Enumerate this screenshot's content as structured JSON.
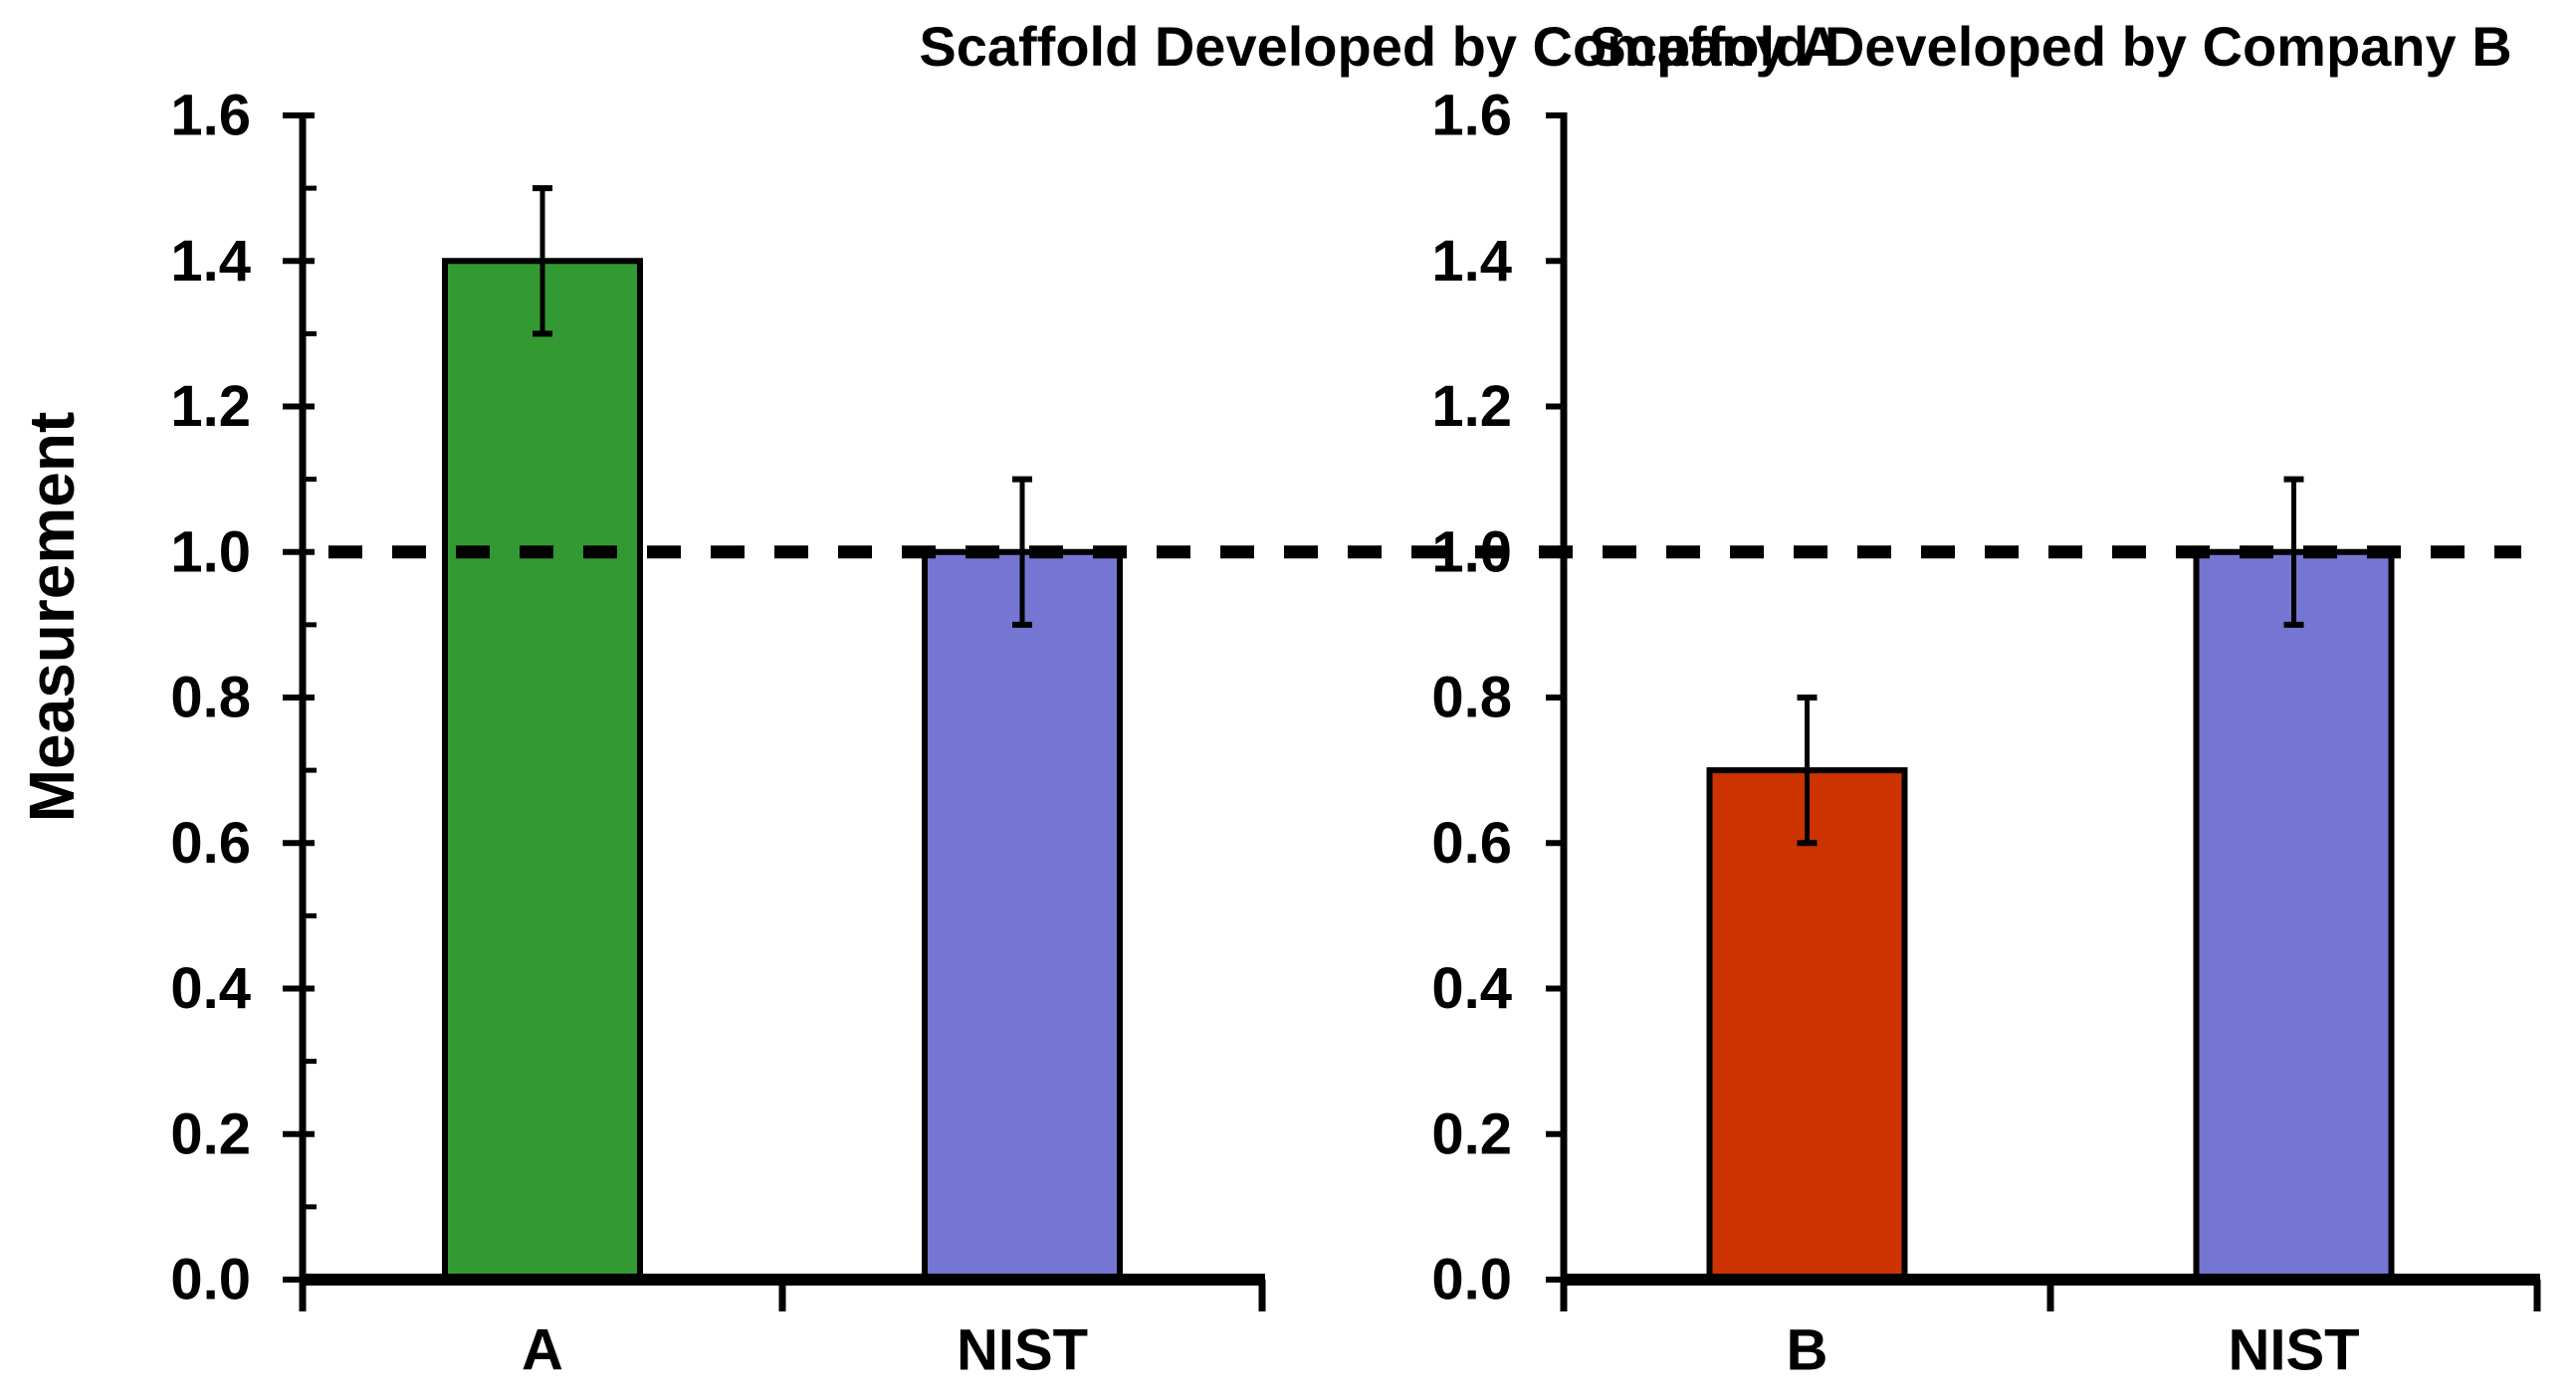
{
  "figure": {
    "background": "#FFFFFF",
    "y_axis_title": "Measurement"
  },
  "style": {
    "axis_color": "#000000",
    "text_color": "#000000",
    "reference_line_color": "#000000",
    "bar_outline_color": "#000000",
    "error_bar_color": "#000000"
  },
  "chart_data": [
    {
      "type": "bar",
      "title": "Scaffold Developed by Company A",
      "categories": [
        "A",
        "NIST"
      ],
      "values": [
        1.4,
        1.0
      ],
      "error_bars": [
        0.1,
        0.1
      ],
      "bar_colors": [
        "#339933",
        "#7575D2"
      ],
      "ylabel": "Measurement",
      "ylim": [
        0.0,
        1.6
      ],
      "ytick_labels": [
        "1.6",
        "1.4",
        "1.2",
        "1.0",
        "0.8",
        "0.6",
        "0.4",
        "0.2",
        "0.0"
      ],
      "ytick_major_step": 0.2,
      "ytick_minor_step": 0.1,
      "reference_line_y": 1.0,
      "grid": false,
      "legend": null
    },
    {
      "type": "bar",
      "title": "Scaffold Developed by Company B",
      "categories": [
        "B",
        "NIST"
      ],
      "values": [
        0.7,
        1.0
      ],
      "error_bars": [
        0.1,
        0.1
      ],
      "bar_colors": [
        "#CC3300",
        "#7575D2"
      ],
      "ylabel": "Measurement",
      "ylim": [
        0.0,
        1.6
      ],
      "ytick_labels": [
        "1.6",
        "1.4",
        "1.2",
        "1.0",
        "0.8",
        "0.6",
        "0.4",
        "0.2",
        "0.0"
      ],
      "ytick_major_step": 0.2,
      "ytick_minor_step": null,
      "reference_line_y": 1.0,
      "grid": false,
      "legend": null
    }
  ]
}
